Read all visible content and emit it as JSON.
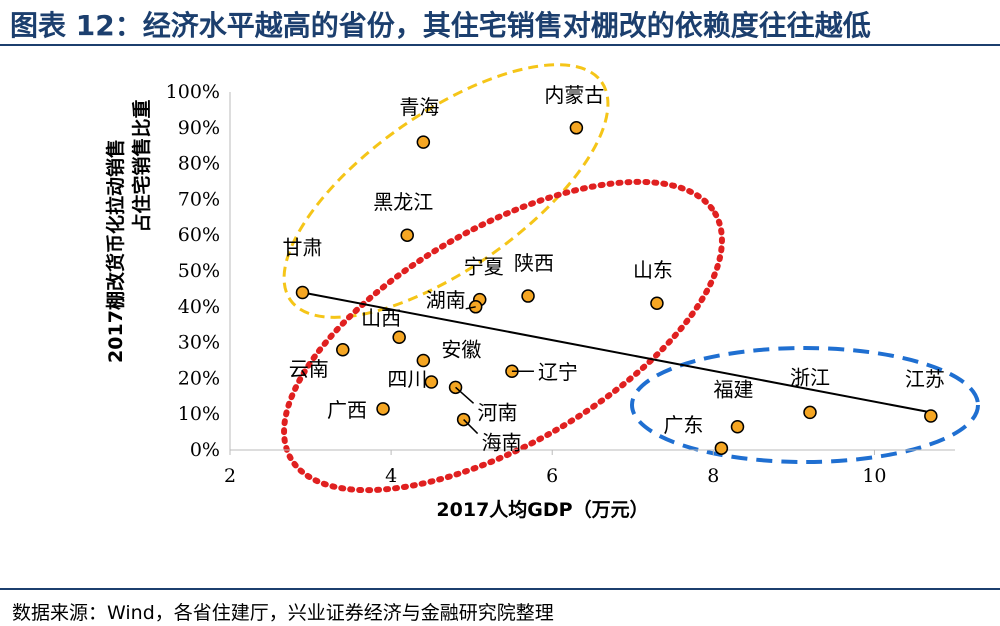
{
  "header": {
    "title": "图表 12：经济水平越高的省份，其住宅销售对棚改的依赖度往往越低"
  },
  "footer": {
    "source": "数据来源：Wind，各省住建厅，兴业证券经济与金融研究院整理"
  },
  "chart_data": {
    "type": "scatter",
    "xlabel": "2017人均GDP（万元）",
    "ylabel": "2017棚改货币化拉动销售占住宅销售比重",
    "xlim": [
      2,
      11
    ],
    "ylim": [
      0,
      100
    ],
    "x_ticks": [
      2,
      4,
      6,
      8,
      10
    ],
    "x_tick_labels": [
      "2",
      "4",
      "6",
      "8",
      "10"
    ],
    "y_ticks": [
      0,
      10,
      20,
      30,
      40,
      50,
      60,
      70,
      80,
      90,
      100
    ],
    "y_tick_labels": [
      "0%",
      "10%",
      "20%",
      "30%",
      "40%",
      "50%",
      "60%",
      "70%",
      "80%",
      "90%",
      "100%"
    ],
    "point_color": "#f5a623",
    "points": [
      {
        "name": "甘肃",
        "x": 2.9,
        "y": 44
      },
      {
        "name": "青海",
        "x": 4.4,
        "y": 86
      },
      {
        "name": "内蒙古",
        "x": 6.3,
        "y": 90
      },
      {
        "name": "黑龙江",
        "x": 4.2,
        "y": 60
      },
      {
        "name": "宁夏",
        "x": 5.1,
        "y": 42
      },
      {
        "name": "湖南",
        "x": 5.05,
        "y": 40
      },
      {
        "name": "陕西",
        "x": 5.7,
        "y": 43
      },
      {
        "name": "山东",
        "x": 7.3,
        "y": 41
      },
      {
        "name": "山西",
        "x": 4.1,
        "y": 31.5
      },
      {
        "name": "云南",
        "x": 3.4,
        "y": 28
      },
      {
        "name": "安徽",
        "x": 4.4,
        "y": 25
      },
      {
        "name": "四川",
        "x": 4.5,
        "y": 19
      },
      {
        "name": "辽宁",
        "x": 5.5,
        "y": 22
      },
      {
        "name": "河南",
        "x": 4.8,
        "y": 17.5
      },
      {
        "name": "广西",
        "x": 3.9,
        "y": 11.5
      },
      {
        "name": "海南",
        "x": 4.9,
        "y": 8.5
      },
      {
        "name": "福建",
        "x": 8.3,
        "y": 6.5
      },
      {
        "name": "广东",
        "x": 8.1,
        "y": 0.5
      },
      {
        "name": "浙江",
        "x": 9.2,
        "y": 10.5
      },
      {
        "name": "江苏",
        "x": 10.7,
        "y": 9.5
      }
    ],
    "trendline": {
      "x": [
        2.9,
        10.7
      ],
      "y": [
        44,
        10.5
      ]
    },
    "ellipse_colors": {
      "yellow": "#f5c518",
      "red": "#e02020",
      "blue": "#1f6fd1"
    }
  }
}
